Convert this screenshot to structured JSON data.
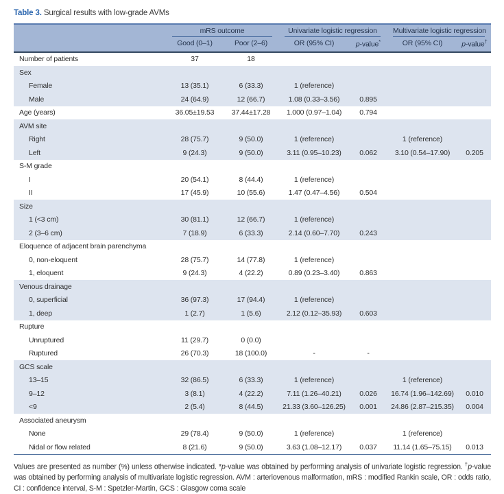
{
  "caption": {
    "label": "Table 3.",
    "text": " Surgical results with low-grade AVMs"
  },
  "colors": {
    "accent_blue": "#2a65ae",
    "header_bg": "#a3b6d5",
    "band_bg": "#dde4ef",
    "rule_blue": "#5a7cb0",
    "rule_dark": "#33475f"
  },
  "table": {
    "groups": [
      "mRS outcome",
      "Univariate logistic regression",
      "Multivariate logistic regression"
    ],
    "sub_headers": [
      [
        {
          "t": "Good (0–1)"
        }
      ],
      [
        {
          "t": "Poor (2–6)"
        }
      ],
      [
        {
          "t": "OR (95% CI)"
        }
      ],
      [
        {
          "t": "p",
          "i": true
        },
        {
          "t": "-value"
        },
        {
          "t": "*",
          "sup": true
        }
      ],
      [
        {
          "t": "OR (95% CI)"
        }
      ],
      [
        {
          "t": "p",
          "i": true
        },
        {
          "t": "-value"
        },
        {
          "t": "†",
          "sup": true
        }
      ]
    ],
    "rows": [
      {
        "label": "Number of patients",
        "band": "white",
        "cells": [
          "37",
          "18",
          "",
          "",
          "",
          ""
        ]
      },
      {
        "label": "Sex",
        "header": true,
        "band": "blue",
        "cells": [
          "",
          "",
          "",
          "",
          "",
          ""
        ]
      },
      {
        "label": "Female",
        "indent": true,
        "band": "blue",
        "cells": [
          "13 (35.1)",
          "6 (33.3)",
          "1 (reference)",
          "",
          "",
          ""
        ]
      },
      {
        "label": "Male",
        "indent": true,
        "band": "blue",
        "cells": [
          "24 (64.9)",
          "12 (66.7)",
          "1.08 (0.33–3.56)",
          "0.895",
          "",
          ""
        ]
      },
      {
        "label": "Age (years)",
        "band": "white",
        "cells": [
          "36.05±19.53",
          "37.44±17.28",
          "1.000 (0.97–1.04)",
          "0.794",
          "",
          ""
        ]
      },
      {
        "label": "AVM site",
        "header": true,
        "band": "blue",
        "cells": [
          "",
          "",
          "",
          "",
          "",
          ""
        ]
      },
      {
        "label": "Right",
        "indent": true,
        "band": "blue",
        "cells": [
          "28 (75.7)",
          "9 (50.0)",
          "1 (reference)",
          "",
          "1 (reference)",
          ""
        ]
      },
      {
        "label": "Left",
        "indent": true,
        "band": "blue",
        "cells": [
          "9 (24.3)",
          "9 (50.0)",
          "3.11 (0.95–10.23)",
          "0.062",
          "3.10 (0.54–17.90)",
          "0.205"
        ]
      },
      {
        "label": "S-M grade",
        "header": true,
        "band": "white",
        "cells": [
          "",
          "",
          "",
          "",
          "",
          ""
        ]
      },
      {
        "label": "I",
        "indent": true,
        "band": "white",
        "cells": [
          "20 (54.1)",
          "8 (44.4)",
          "1 (reference)",
          "",
          "",
          ""
        ]
      },
      {
        "label": "II",
        "indent": true,
        "band": "white",
        "cells": [
          "17 (45.9)",
          "10 (55.6)",
          "1.47 (0.47–4.56)",
          "0.504",
          "",
          ""
        ]
      },
      {
        "label": "Size",
        "header": true,
        "band": "blue",
        "cells": [
          "",
          "",
          "",
          "",
          "",
          ""
        ]
      },
      {
        "label": "1 (<3 cm)",
        "indent": true,
        "band": "blue",
        "cells": [
          "30 (81.1)",
          "12 (66.7)",
          "1 (reference)",
          "",
          "",
          ""
        ]
      },
      {
        "label": "2 (3–6 cm)",
        "indent": true,
        "band": "blue",
        "cells": [
          "7 (18.9)",
          "6 (33.3)",
          "2.14 (0.60–7.70)",
          "0.243",
          "",
          ""
        ]
      },
      {
        "label": "Eloquence of adjacent brain parenchyma",
        "header": true,
        "band": "white",
        "cells": [
          "",
          "",
          "",
          "",
          "",
          ""
        ]
      },
      {
        "label": "0, non-eloquent",
        "indent": true,
        "band": "white",
        "cells": [
          "28 (75.7)",
          "14 (77.8)",
          "1 (reference)",
          "",
          "",
          ""
        ]
      },
      {
        "label": "1, eloquent",
        "indent": true,
        "band": "white",
        "cells": [
          "9 (24.3)",
          "4 (22.2)",
          "0.89 (0.23–3.40)",
          "0.863",
          "",
          ""
        ]
      },
      {
        "label": "Venous drainage",
        "header": true,
        "band": "blue",
        "cells": [
          "",
          "",
          "",
          "",
          "",
          ""
        ]
      },
      {
        "label": "0, superficial",
        "indent": true,
        "band": "blue",
        "cells": [
          "36 (97.3)",
          "17 (94.4)",
          "1 (reference)",
          "",
          "",
          ""
        ]
      },
      {
        "label": "1, deep",
        "indent": true,
        "band": "blue",
        "cells": [
          "1 (2.7)",
          "1 (5.6)",
          "2.12 (0.12–35.93)",
          "0.603",
          "",
          ""
        ]
      },
      {
        "label": "Rupture",
        "header": true,
        "band": "white",
        "cells": [
          "",
          "",
          "",
          "",
          "",
          ""
        ]
      },
      {
        "label": "Unruptured",
        "indent": true,
        "band": "white",
        "cells": [
          "11 (29.7)",
          "0 (0.0)",
          "",
          "",
          "",
          ""
        ]
      },
      {
        "label": "Ruptured",
        "indent": true,
        "band": "white",
        "cells": [
          "26 (70.3)",
          "18 (100.0)",
          "-",
          "-",
          "",
          ""
        ]
      },
      {
        "label": "GCS scale",
        "header": true,
        "band": "blue",
        "cells": [
          "",
          "",
          "",
          "",
          "",
          ""
        ]
      },
      {
        "label": "13–15",
        "indent": true,
        "band": "blue",
        "cells": [
          "32 (86.5)",
          "6 (33.3)",
          "1 (reference)",
          "",
          "1 (reference)",
          ""
        ]
      },
      {
        "label": "9–12",
        "indent": true,
        "band": "blue",
        "cells": [
          "3 (8.1)",
          "4 (22.2)",
          "7.11 (1.26–40.21)",
          "0.026",
          "16.74 (1.96–142.69)",
          "0.010"
        ]
      },
      {
        "label": "<9",
        "indent": true,
        "band": "blue",
        "cells": [
          "2 (5.4)",
          "8 (44.5)",
          "21.33 (3.60–126.25)",
          "0.001",
          "24.86 (2.87–215.35)",
          "0.004"
        ]
      },
      {
        "label": "Associated aneurysm",
        "header": true,
        "band": "white",
        "cells": [
          "",
          "",
          "",
          "",
          "",
          ""
        ]
      },
      {
        "label": "None",
        "indent": true,
        "band": "white",
        "cells": [
          "29 (78.4)",
          "9 (50.0)",
          "1 (reference)",
          "",
          "1 (reference)",
          ""
        ]
      },
      {
        "label": "Nidal or flow related",
        "indent": true,
        "band": "white",
        "cells": [
          "8 (21.6)",
          "9 (50.0)",
          "3.63 (1.08–12.17)",
          "0.037",
          "11.14 (1.65–75.15)",
          "0.013"
        ]
      }
    ]
  },
  "footnote_segments": [
    {
      "t": "Values are presented as number (%) unless otherwise indicated. *"
    },
    {
      "t": "p",
      "i": true
    },
    {
      "t": "-value was obtained by performing analysis of univariate logistic regression. "
    },
    {
      "t": "†",
      "sup": true
    },
    {
      "t": "p",
      "i": true
    },
    {
      "t": "-value was obtained by performing analysis of multivariate logistic regression. AVM : arteriovenous malformation, mRS : modified Rankin scale, OR : odds ratio, CI : confidence interval, S-M : Spetzler-Martin, GCS : Glasgow coma scale"
    }
  ]
}
